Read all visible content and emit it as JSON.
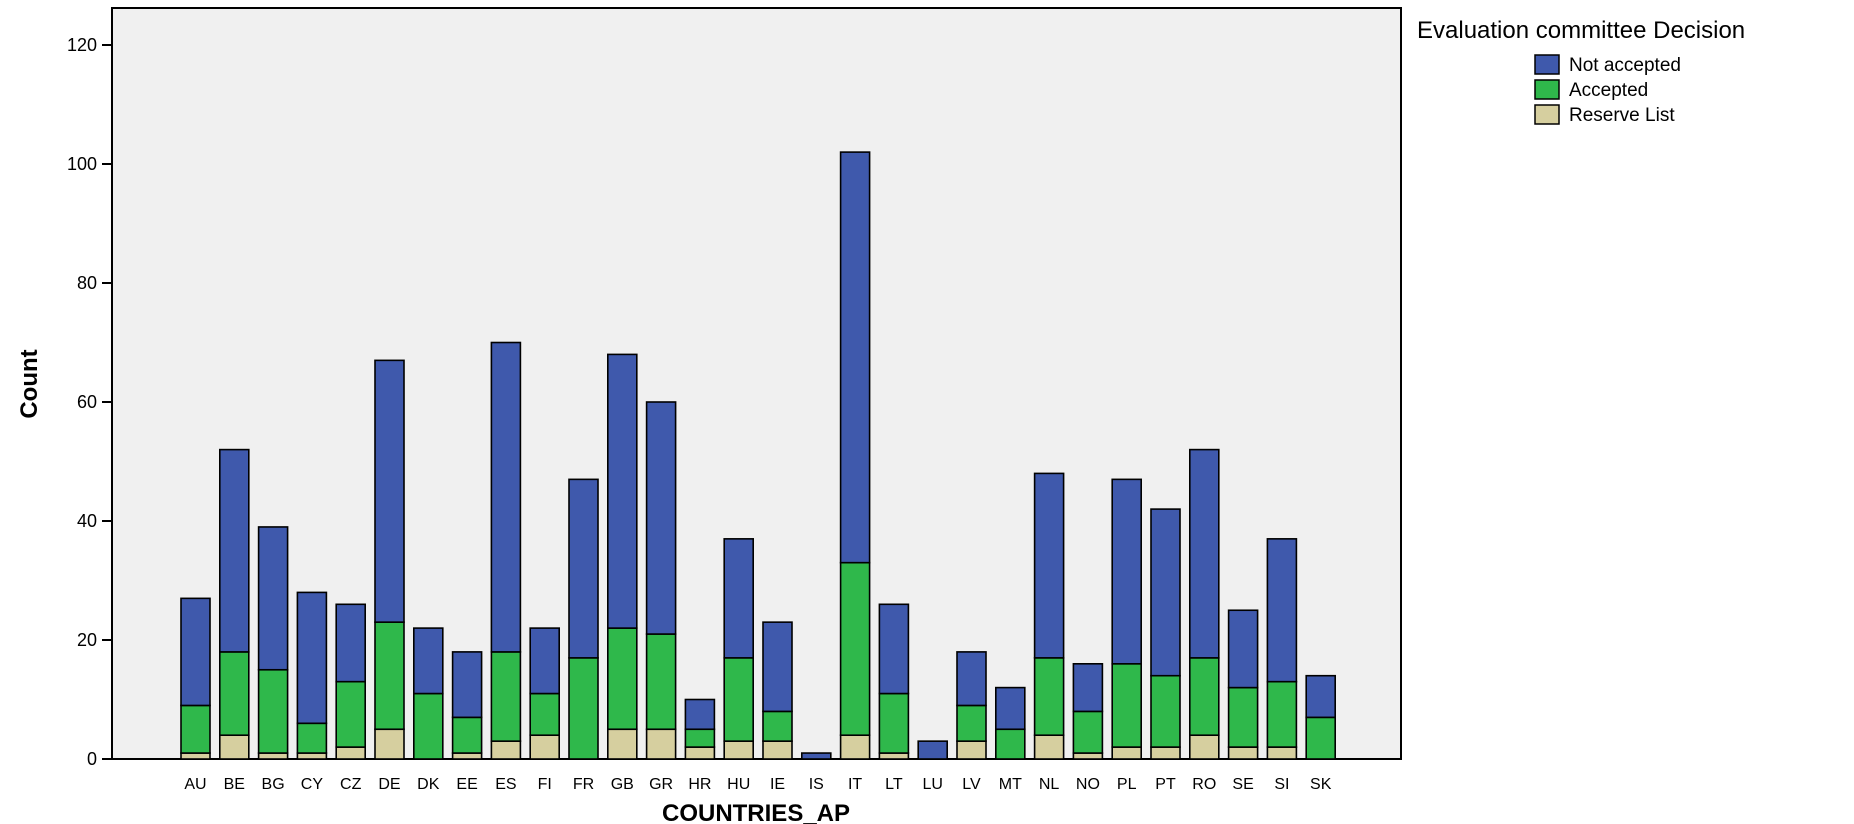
{
  "chart_data": {
    "type": "bar",
    "stacked": true,
    "xlabel": "COUNTRIES_AP",
    "ylabel": "Count",
    "ylim": [
      0,
      126
    ],
    "yticks": [
      0,
      20,
      40,
      60,
      80,
      100,
      120
    ],
    "grid": false,
    "legend": {
      "title": "Evaluation committee Decision",
      "position": "top-right"
    },
    "categories": [
      "AU",
      "BE",
      "BG",
      "CY",
      "CZ",
      "DE",
      "DK",
      "EE",
      "ES",
      "FI",
      "FR",
      "GB",
      "GR",
      "HR",
      "HU",
      "IE",
      "IS",
      "IT",
      "LT",
      "LU",
      "LV",
      "MT",
      "NL",
      "NO",
      "PL",
      "PT",
      "RO",
      "SE",
      "SI",
      "SK"
    ],
    "series": [
      {
        "name": "Reserve List",
        "color": "#d6cf9f",
        "values": [
          1,
          4,
          1,
          1,
          2,
          5,
          0,
          1,
          3,
          4,
          0,
          5,
          5,
          2,
          3,
          3,
          0,
          4,
          1,
          0,
          3,
          0,
          4,
          1,
          2,
          2,
          4,
          2,
          2,
          0
        ]
      },
      {
        "name": "Accepted",
        "color": "#2fb84b",
        "values": [
          8,
          14,
          14,
          5,
          11,
          18,
          11,
          6,
          15,
          7,
          17,
          17,
          16,
          3,
          14,
          5,
          0,
          29,
          10,
          0,
          6,
          5,
          13,
          7,
          14,
          12,
          13,
          10,
          11,
          7
        ]
      },
      {
        "name": "Not accepted",
        "color": "#3f59ac",
        "values": [
          18,
          34,
          24,
          22,
          13,
          44,
          11,
          11,
          52,
          11,
          30,
          46,
          39,
          5,
          20,
          15,
          1,
          69,
          15,
          3,
          9,
          7,
          31,
          8,
          31,
          28,
          35,
          13,
          24,
          7
        ]
      }
    ]
  }
}
